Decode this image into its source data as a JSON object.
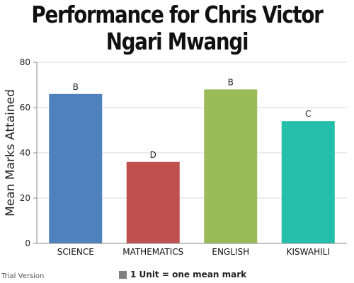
{
  "chart_data": {
    "type": "bar",
    "title": "Performance for Chris Victor Ngari Mwangi",
    "xlabel": "",
    "ylabel": "Mean Marks Attained",
    "categories": [
      "SCIENCE",
      "MATHEMATICS",
      "ENGLISH",
      "KISWAHILI"
    ],
    "values": [
      66,
      36,
      68,
      54
    ],
    "grades": [
      "B",
      "D",
      "B",
      "C"
    ],
    "colors": [
      "#4f81bd",
      "#c0504d",
      "#9bbb59",
      "#23bfaa"
    ],
    "ylim": [
      0,
      80
    ],
    "yticks": [
      0,
      20,
      40,
      60,
      80
    ],
    "grid": true,
    "legend": {
      "label": "1 Unit = one mean mark",
      "color": "#7f7f7f",
      "position": "bottom"
    }
  },
  "watermark": "Trial Version"
}
